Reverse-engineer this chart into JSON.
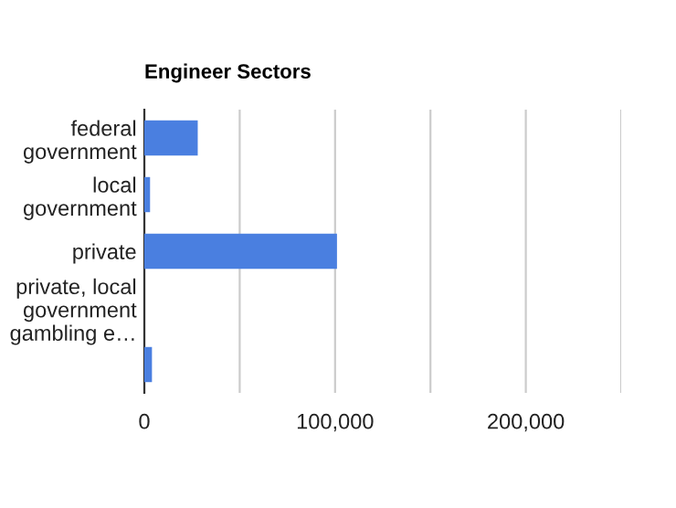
{
  "chart_data": {
    "type": "bar",
    "orientation": "horizontal",
    "title": "Engineer Sectors",
    "categories": [
      "federal\ngovernment",
      "local\ngovernment",
      "private",
      "private, local\ngovernment\ngambling e…",
      null
    ],
    "values": [
      28000,
      3000,
      101000,
      0,
      4000
    ],
    "color": "#4a7fe0",
    "xlim": [
      0,
      250000
    ],
    "xticks": [
      0,
      {
        "value": 50000,
        "label": null
      },
      {
        "value": 100000,
        "label": "100,000"
      },
      {
        "value": 150000,
        "label": null
      },
      {
        "value": 200000,
        "label": "200,000"
      },
      {
        "value": 250000,
        "label": null
      }
    ],
    "grid": "x"
  }
}
